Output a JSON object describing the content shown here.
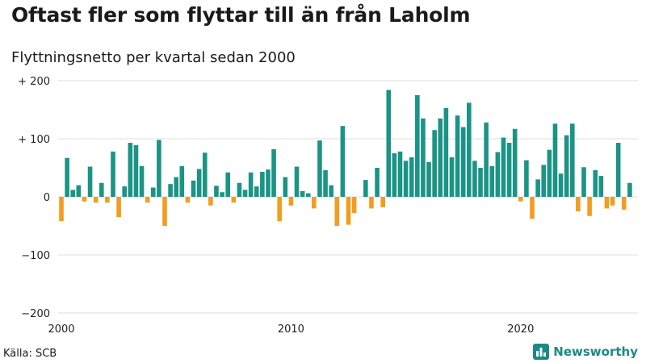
{
  "header": {
    "title": "Oftast fler som flyttar till än från Laholm",
    "subtitle": "Flyttningsnetto per kvartal sedan 2000"
  },
  "footer": {
    "source": "Källa: SCB",
    "brand": "Newsworthy"
  },
  "colors": {
    "positive": "#1b9485",
    "negative": "#f29d1f",
    "grid": "#dddddd",
    "brand": "#1b8a86"
  },
  "chart_data": {
    "type": "bar",
    "x_start": "2000 Q1",
    "interval": "quarter",
    "ylim": [
      -200,
      200
    ],
    "y_ticks": [
      {
        "value": 200,
        "label": "+ 200"
      },
      {
        "value": 100,
        "label": "+ 100"
      },
      {
        "value": 0,
        "label": "0"
      },
      {
        "value": -100,
        "label": "−100"
      },
      {
        "value": -200,
        "label": "−200"
      }
    ],
    "x_ticks": [
      {
        "label": "2000",
        "year": 2000
      },
      {
        "label": "2010",
        "year": 2010
      },
      {
        "label": "2020",
        "year": 2020
      }
    ],
    "grid": true,
    "values": [
      -42,
      67,
      12,
      20,
      -8,
      52,
      -10,
      24,
      -10,
      78,
      -35,
      18,
      93,
      89,
      53,
      -10,
      16,
      98,
      -50,
      22,
      34,
      53,
      -10,
      28,
      48,
      76,
      -15,
      19,
      8,
      42,
      -10,
      24,
      12,
      42,
      18,
      43,
      47,
      82,
      -42,
      34,
      -15,
      52,
      10,
      6,
      -20,
      97,
      46,
      20,
      -50,
      122,
      -48,
      -28,
      0,
      29,
      -20,
      50,
      -18,
      184,
      75,
      78,
      62,
      68,
      175,
      135,
      60,
      115,
      135,
      153,
      68,
      140,
      120,
      162,
      62,
      50,
      128,
      53,
      77,
      102,
      93,
      117,
      -8,
      63,
      -38,
      30,
      55,
      81,
      126,
      40,
      106,
      126,
      -25,
      51,
      -33,
      46,
      36,
      -20,
      -15,
      93,
      -22,
      24
    ]
  }
}
